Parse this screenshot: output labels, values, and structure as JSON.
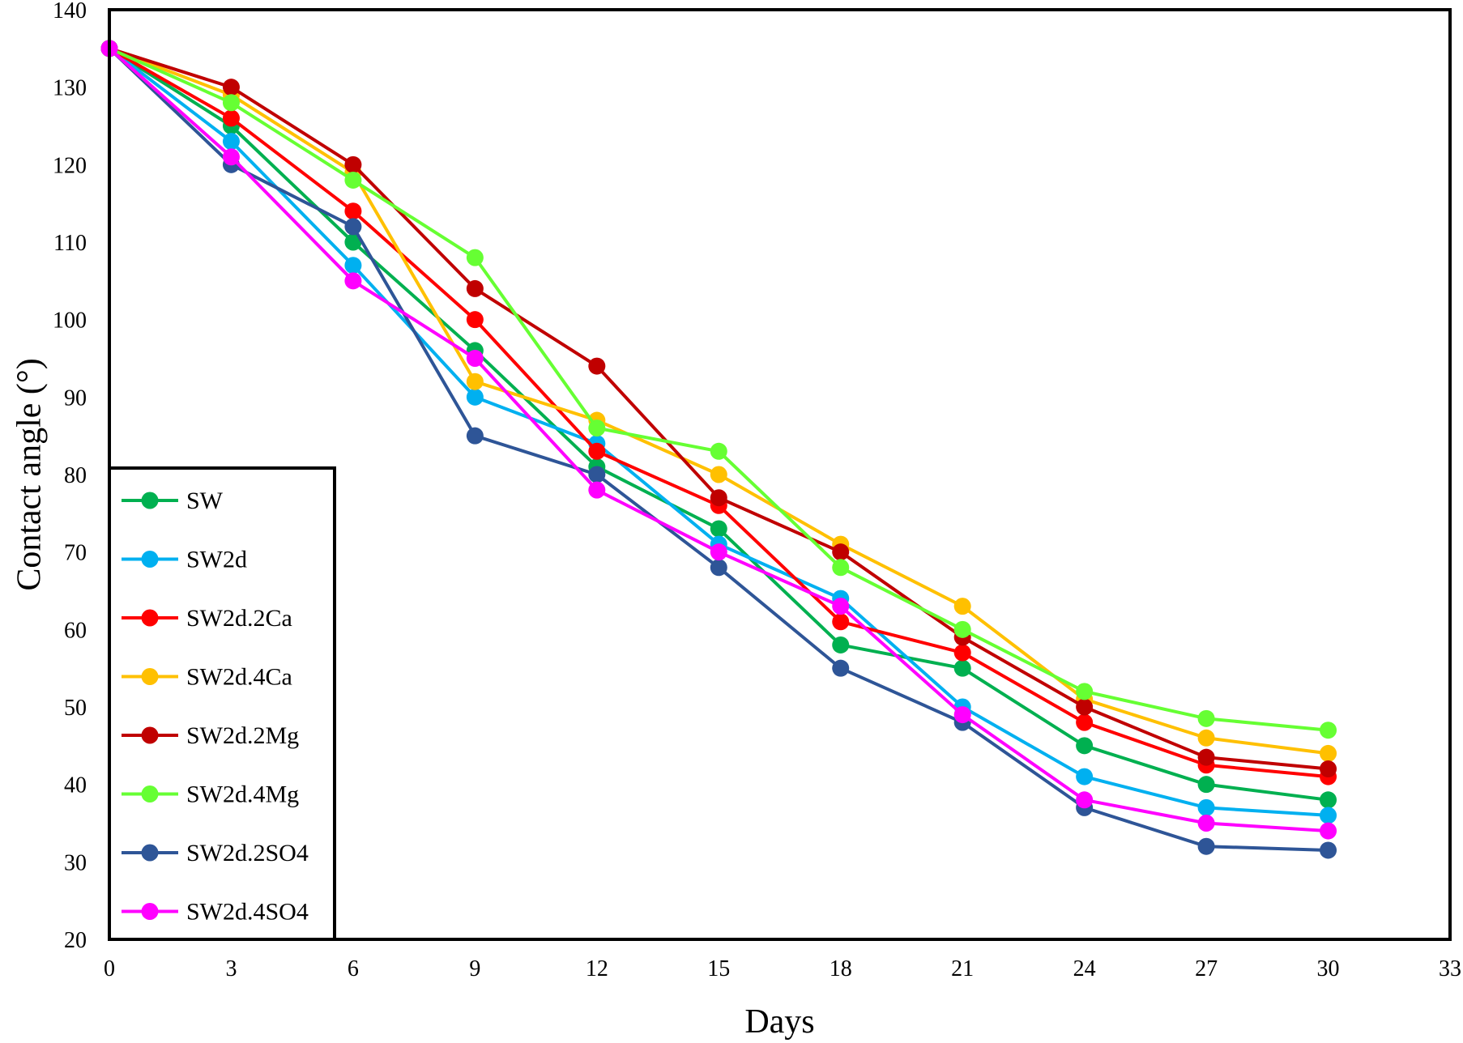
{
  "chart_data": {
    "type": "line",
    "xlabel": "Days",
    "ylabel": "Contact angle (°)",
    "xlim": [
      0,
      33
    ],
    "ylim": [
      20,
      140
    ],
    "x_ticks": [
      0,
      3,
      6,
      9,
      12,
      15,
      18,
      21,
      24,
      27,
      30,
      33
    ],
    "y_ticks": [
      20,
      30,
      40,
      50,
      60,
      70,
      80,
      90,
      100,
      110,
      120,
      130,
      140
    ],
    "grid": false,
    "legend_position": "bottom-left",
    "x": [
      0,
      3,
      6,
      9,
      12,
      15,
      18,
      21,
      24,
      27,
      30
    ],
    "series": [
      {
        "name": "SW",
        "color": "#00b050",
        "values": [
          135,
          125,
          110,
          96,
          81,
          73,
          58,
          55,
          45,
          40,
          38
        ]
      },
      {
        "name": "SW2d",
        "color": "#00b0f0",
        "values": [
          135,
          123,
          107,
          90,
          84,
          71,
          64,
          50,
          41,
          37,
          36
        ]
      },
      {
        "name": "SW2d.2Ca",
        "color": "#ff0000",
        "values": [
          135,
          126,
          114,
          100,
          83,
          76,
          61,
          57,
          48,
          42.5,
          41
        ]
      },
      {
        "name": "SW2d.4Ca",
        "color": "#ffc000",
        "values": [
          135,
          129,
          119,
          92,
          87,
          80,
          71,
          63,
          51,
          46,
          44
        ]
      },
      {
        "name": "SW2d.2Mg",
        "color": "#c00000",
        "values": [
          135,
          130,
          120,
          104,
          94,
          77,
          70,
          59,
          50,
          43.5,
          42
        ]
      },
      {
        "name": "SW2d.4Mg",
        "color": "#66ff33",
        "values": [
          135,
          128,
          118,
          108,
          86,
          83,
          68,
          60,
          52,
          48.5,
          47
        ]
      },
      {
        "name": "SW2d.2SO4",
        "color": "#2e5597",
        "values": [
          135,
          120,
          112,
          85,
          80,
          68,
          55,
          48,
          37,
          32,
          31.5
        ]
      },
      {
        "name": "SW2d.4SO4",
        "color": "#ff00ff",
        "values": [
          135,
          121,
          105,
          95,
          78,
          70,
          63,
          49,
          38,
          35,
          34
        ]
      }
    ]
  }
}
